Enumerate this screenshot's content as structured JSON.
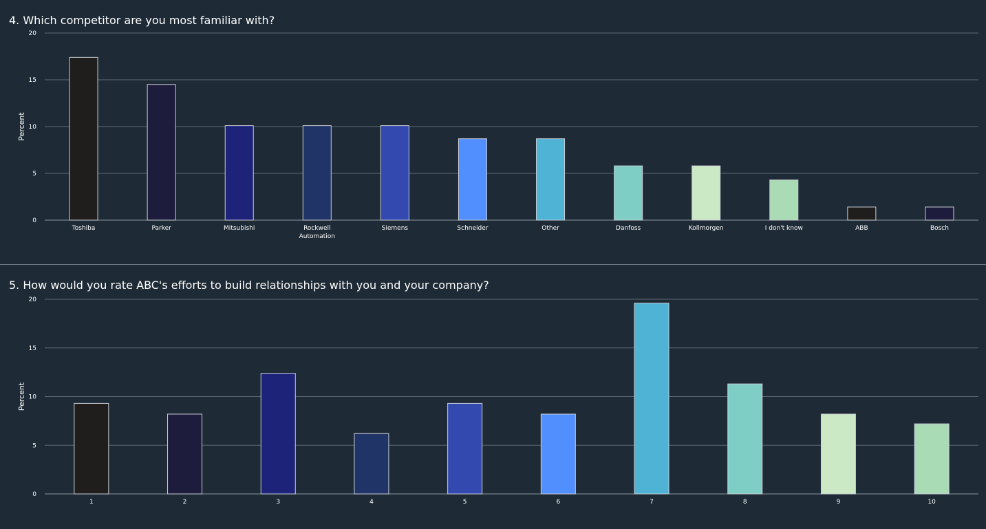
{
  "chart_data": [
    {
      "type": "bar",
      "title": "4. Which competitor are you most familiar with?",
      "xlabel": "",
      "ylabel": "Percent",
      "ylim": [
        0,
        20
      ],
      "yticks": [
        0,
        5,
        10,
        15,
        20
      ],
      "grid": true,
      "categories": [
        "Toshiba",
        "Parker",
        "Mitsubishi",
        "Rockwell Automation",
        "Siemens",
        "Schneider",
        "Other",
        "Danfoss",
        "Kollmorgen",
        "I don't know",
        "ABB",
        "Bosch"
      ],
      "values": [
        17.4,
        14.5,
        10.1,
        10.1,
        10.1,
        8.7,
        8.7,
        5.8,
        5.8,
        4.3,
        1.4,
        1.4
      ],
      "colors": [
        "#201e1c",
        "#1e1c3c",
        "#1e237a",
        "#213468",
        "#3349b0",
        "#528ffe",
        "#4fb3d6",
        "#7ecec6",
        "#cce9c5",
        "#a9dbb5",
        "#201e1c",
        "#1e1c3c"
      ]
    },
    {
      "type": "bar",
      "title": "5. How would you rate ABC's efforts to build relationships with you and your company?",
      "xlabel": "",
      "ylabel": "Percent",
      "ylim": [
        0,
        20
      ],
      "yticks": [
        0,
        5,
        10,
        15,
        20
      ],
      "grid": true,
      "categories": [
        "1",
        "2",
        "3",
        "4",
        "5",
        "6",
        "7",
        "8",
        "9",
        "10"
      ],
      "values": [
        9.3,
        8.2,
        12.4,
        6.2,
        9.3,
        8.2,
        19.6,
        11.3,
        8.2,
        7.2
      ],
      "colors": [
        "#201e1c",
        "#1e1c3c",
        "#1e237a",
        "#213468",
        "#3349b0",
        "#528ffe",
        "#4fb3d6",
        "#7ecec6",
        "#cce9c5",
        "#a9dbb5"
      ]
    }
  ]
}
